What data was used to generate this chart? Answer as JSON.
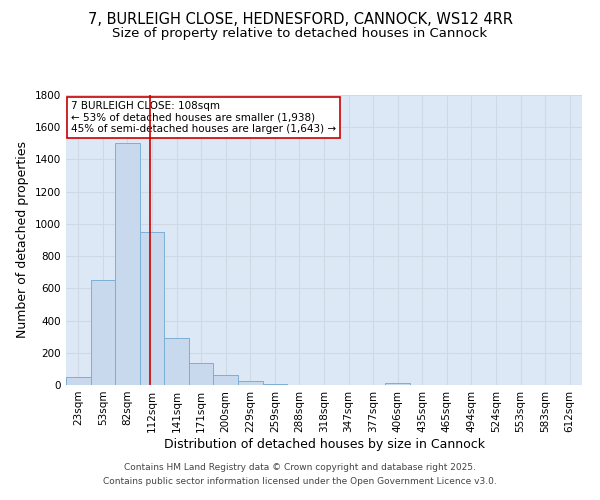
{
  "title_line1": "7, BURLEIGH CLOSE, HEDNESFORD, CANNOCK, WS12 4RR",
  "title_line2": "Size of property relative to detached houses in Cannock",
  "xlabel": "Distribution of detached houses by size in Cannock",
  "ylabel": "Number of detached properties",
  "bar_labels": [
    "23sqm",
    "53sqm",
    "82sqm",
    "112sqm",
    "141sqm",
    "171sqm",
    "200sqm",
    "229sqm",
    "259sqm",
    "288sqm",
    "318sqm",
    "347sqm",
    "377sqm",
    "406sqm",
    "435sqm",
    "465sqm",
    "494sqm",
    "524sqm",
    "553sqm",
    "583sqm",
    "612sqm"
  ],
  "bar_values": [
    47,
    650,
    1500,
    950,
    290,
    135,
    62,
    22,
    5,
    3,
    2,
    1,
    0,
    12,
    0,
    0,
    0,
    0,
    0,
    0,
    0
  ],
  "bar_color": "#c8d9ee",
  "bar_edge_color": "#7bafd4",
  "grid_color": "#d0d8e4",
  "background_color": "#dce8f5",
  "vline_x_idx": 2.93,
  "vline_color": "#cc0000",
  "annotation_text": "7 BURLEIGH CLOSE: 108sqm\n← 53% of detached houses are smaller (1,938)\n45% of semi-detached houses are larger (1,643) →",
  "annotation_box_color": "#ffffff",
  "annotation_box_edge": "#cc0000",
  "footer_line1": "Contains HM Land Registry data © Crown copyright and database right 2025.",
  "footer_line2": "Contains public sector information licensed under the Open Government Licence v3.0.",
  "ylim": [
    0,
    1800
  ],
  "yticks": [
    0,
    200,
    400,
    600,
    800,
    1000,
    1200,
    1400,
    1600,
    1800
  ],
  "title_fontsize": 10.5,
  "subtitle_fontsize": 9.5,
  "tick_fontsize": 7.5,
  "label_fontsize": 9,
  "footer_fontsize": 6.5
}
